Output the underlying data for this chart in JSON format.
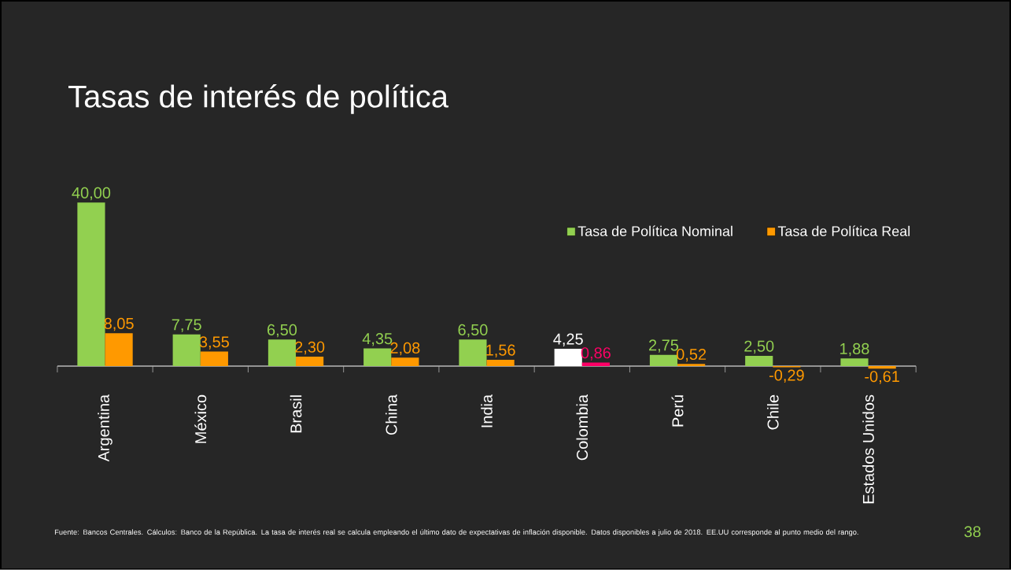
{
  "chart_data": {
    "type": "bar",
    "title": "Tasas de interés de política",
    "categories": [
      "Argentina",
      "México",
      "Brasil",
      "China",
      "India",
      "Colombia",
      "Perú",
      "Chile",
      "Estados Unidos"
    ],
    "series": [
      {
        "name": "Tasa de Política Nominal",
        "color": "#92d050",
        "colors": [
          "#92d050",
          "#92d050",
          "#92d050",
          "#92d050",
          "#92d050",
          "#ffffff",
          "#92d050",
          "#92d050",
          "#92d050"
        ],
        "values": [
          40.0,
          7.75,
          6.5,
          4.35,
          6.5,
          4.25,
          2.75,
          2.5,
          1.88
        ],
        "value_labels": [
          "40,00",
          "7,75",
          "6,50",
          "4,35",
          "6,50",
          "4,25",
          "2,75",
          "2,50",
          "1,88"
        ]
      },
      {
        "name": "Tasa de Política Real",
        "color": "#ff9900",
        "colors": [
          "#ff9900",
          "#ff9900",
          "#ff9900",
          "#ff9900",
          "#ff9900",
          "#ff0066",
          "#ff9900",
          "#ff9900",
          "#ff9900"
        ],
        "values": [
          8.05,
          3.55,
          2.3,
          2.08,
          1.56,
          0.86,
          0.52,
          -0.29,
          -0.61
        ],
        "value_labels": [
          "8,05",
          "3,55",
          "2,30",
          "2,08",
          "1,56",
          "0,86",
          "0,52",
          "-0,29",
          "-0,61"
        ]
      }
    ],
    "legend": "top right",
    "annotations": [
      "Fuente: Bancos Centrales. Cálculos: Banco de la República. La tasa de interés real se calcula empleando el último dato de expectativas de inflación disponible. Datos disponibles a julio de 2018. EE.UU corresponde al punto medio del rango.",
      "38"
    ]
  }
}
